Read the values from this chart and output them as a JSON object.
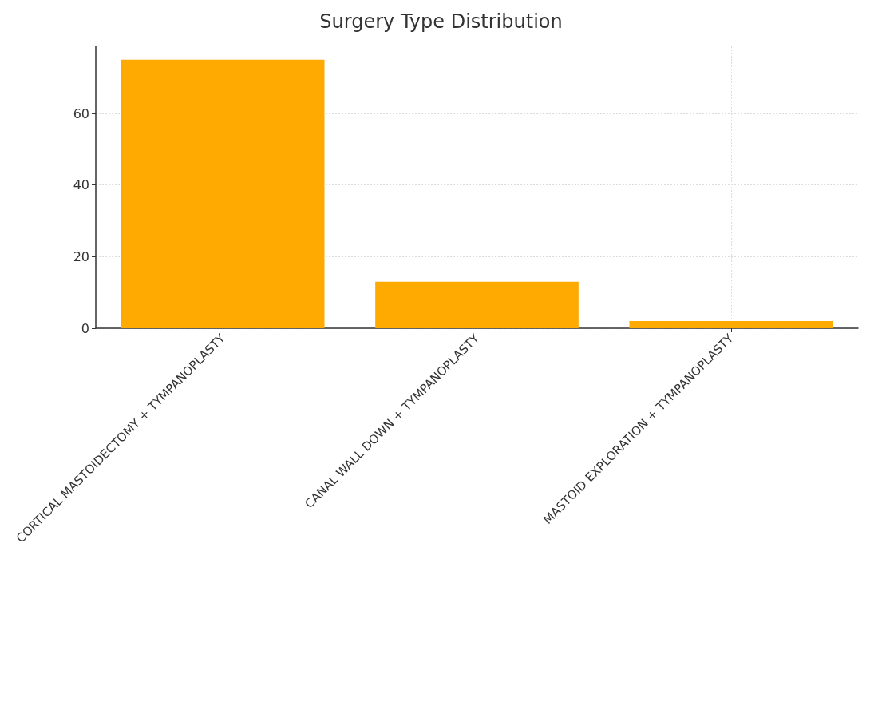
{
  "chart_data": {
    "type": "bar",
    "title": "Surgery Type Distribution",
    "categories": [
      "CORTICAL MASTOIDECTOMY + TYMPANOPLASTY",
      "CANAL WALL DOWN + TYMPANOPLASTY",
      "MASTOID EXPLORATION + TYMPANOPLASTY"
    ],
    "values": [
      75,
      13,
      2
    ],
    "color": "#ffaa00",
    "ylim": [
      0,
      78.75
    ],
    "yticks": [
      0,
      20,
      40,
      60
    ],
    "grid": true
  }
}
